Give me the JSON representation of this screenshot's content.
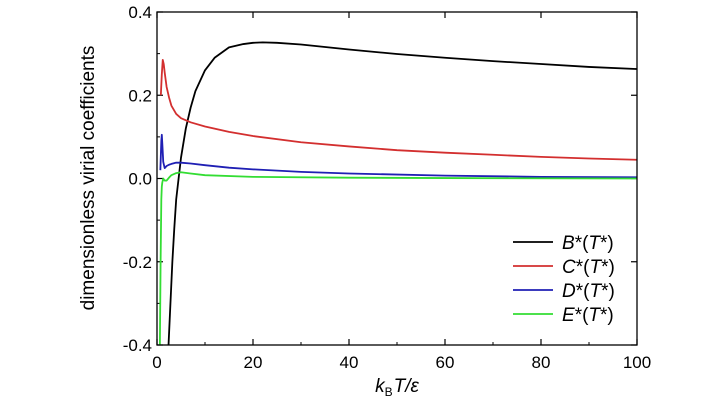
{
  "chart_data": {
    "type": "line",
    "xlabel": {
      "k": "k",
      "sub": "B",
      "rest": "T/ε"
    },
    "ylabel": "dimensionless virial coefficients",
    "xlim": [
      0,
      100
    ],
    "ylim": [
      -0.4,
      0.4
    ],
    "xticks": [
      0,
      20,
      40,
      60,
      80,
      100
    ],
    "yticks": [
      -0.4,
      -0.2,
      0.0,
      0.2,
      0.4
    ],
    "ytick_labels": [
      "-0.4",
      "-0.2",
      "0.0",
      "0.2",
      "0.4"
    ],
    "legend_position": "bottom-right",
    "series": [
      {
        "name": "B*(T*)",
        "legend": {
          "a": "B",
          "b": "*(",
          "c": "T",
          "d": "*)"
        },
        "color": "#000000",
        "x": [
          2.4,
          2.8,
          3.2,
          3.6,
          4.0,
          5.0,
          6.0,
          7.0,
          8.0,
          10.0,
          12.0,
          15.0,
          18.0,
          20.0,
          22.0,
          25.0,
          30.0,
          35.0,
          40.0,
          50.0,
          60.0,
          70.0,
          80.0,
          90.0,
          100.0
        ],
        "y": [
          -0.4,
          -0.3,
          -0.2,
          -0.12,
          -0.05,
          0.05,
          0.12,
          0.17,
          0.21,
          0.26,
          0.29,
          0.315,
          0.323,
          0.326,
          0.327,
          0.326,
          0.322,
          0.316,
          0.31,
          0.299,
          0.29,
          0.282,
          0.275,
          0.268,
          0.263
        ]
      },
      {
        "name": "C*(T*)",
        "legend": {
          "a": "C",
          "b": "*(",
          "c": "T",
          "d": "*)"
        },
        "color": "#d32f2f",
        "x": [
          0.8,
          1.0,
          1.2,
          1.4,
          1.6,
          2.0,
          2.5,
          3.0,
          4.0,
          5.0,
          7.0,
          10.0,
          15.0,
          20.0,
          30.0,
          40.0,
          50.0,
          60.0,
          70.0,
          80.0,
          90.0,
          100.0
        ],
        "y": [
          0.2,
          0.25,
          0.285,
          0.275,
          0.255,
          0.22,
          0.195,
          0.175,
          0.155,
          0.145,
          0.135,
          0.125,
          0.112,
          0.102,
          0.087,
          0.077,
          0.068,
          0.062,
          0.057,
          0.052,
          0.048,
          0.045
        ]
      },
      {
        "name": "D*(T*)",
        "legend": {
          "a": "D",
          "b": "*(",
          "c": "T",
          "d": "*)"
        },
        "color": "#1f1fb4",
        "x": [
          0.7,
          0.9,
          1.0,
          1.1,
          1.3,
          1.6,
          2.0,
          2.5,
          3.0,
          4.0,
          5.0,
          7.0,
          10.0,
          15.0,
          20.0,
          30.0,
          40.0,
          60.0,
          80.0,
          100.0
        ],
        "y": [
          0.02,
          0.09,
          0.105,
          0.085,
          0.04,
          0.025,
          0.03,
          0.033,
          0.035,
          0.038,
          0.038,
          0.036,
          0.032,
          0.026,
          0.022,
          0.016,
          0.012,
          0.007,
          0.004,
          0.003
        ]
      },
      {
        "name": "E*(T*)",
        "legend": {
          "a": "E",
          "b": "*(",
          "c": "T",
          "d": "*)"
        },
        "color": "#33dd33",
        "x": [
          0.6,
          0.75,
          0.9,
          1.0,
          1.1,
          1.3,
          1.6,
          2.0,
          2.5,
          3.0,
          4.0,
          5.0,
          7.0,
          10.0,
          20.0,
          40.0,
          60.0,
          100.0
        ],
        "y": [
          -0.4,
          -0.2,
          -0.05,
          -0.02,
          -0.01,
          0.0,
          -0.005,
          -0.005,
          0.002,
          0.008,
          0.013,
          0.015,
          0.012,
          0.008,
          0.004,
          0.002,
          0.001,
          0.0
        ]
      }
    ]
  }
}
